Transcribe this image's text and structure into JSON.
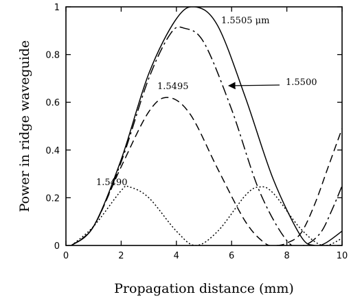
{
  "chart_data": {
    "type": "line",
    "title": "",
    "xlabel": "Propagation distance (mm)",
    "ylabel": "Power in ridge waveguide",
    "xlim": [
      0,
      10
    ],
    "ylim": [
      0,
      1
    ],
    "xticks": [
      "0",
      "2",
      "4",
      "6",
      "8",
      "10"
    ],
    "yticks": [
      "0",
      "0.2",
      "0.4",
      "0.6",
      "0.8",
      "1"
    ],
    "grid": false,
    "legend": "none",
    "series": [
      {
        "name": "1.5505 μm",
        "style": "solid",
        "x": [
          0.2,
          1.0,
          2.0,
          3.0,
          4.0,
          4.7,
          5.5,
          6.5,
          7.5,
          8.5,
          9.0,
          9.4,
          10.0
        ],
        "y": [
          0.0,
          0.08,
          0.36,
          0.72,
          0.95,
          1.0,
          0.92,
          0.62,
          0.28,
          0.04,
          0.0,
          0.01,
          0.06
        ]
      },
      {
        "name": "1.5500",
        "style": "dash-dot",
        "x": [
          0.2,
          1.0,
          2.0,
          3.0,
          3.8,
          4.3,
          5.0,
          6.0,
          7.0,
          8.0,
          8.6,
          9.2,
          9.6,
          10.0
        ],
        "y": [
          0.0,
          0.08,
          0.35,
          0.7,
          0.89,
          0.91,
          0.85,
          0.57,
          0.23,
          0.02,
          0.0,
          0.05,
          0.14,
          0.25
        ]
      },
      {
        "name": "1.5495",
        "style": "dashed",
        "x": [
          0.2,
          1.0,
          2.0,
          3.0,
          3.7,
          4.5,
          5.5,
          6.5,
          7.2,
          7.6,
          8.0,
          8.5,
          9.0,
          9.5,
          10.0
        ],
        "y": [
          0.0,
          0.08,
          0.33,
          0.56,
          0.62,
          0.55,
          0.32,
          0.1,
          0.01,
          0.0,
          0.01,
          0.05,
          0.17,
          0.33,
          0.49
        ]
      },
      {
        "name": "1.5490",
        "style": "dotted",
        "x": [
          0.2,
          1.0,
          2.0,
          2.3,
          3.0,
          4.0,
          4.7,
          5.5,
          6.5,
          7.0,
          7.5,
          8.5,
          9.3,
          10.0
        ],
        "y": [
          0.0,
          0.08,
          0.23,
          0.245,
          0.2,
          0.06,
          0.0,
          0.06,
          0.21,
          0.245,
          0.22,
          0.07,
          0.0,
          0.03
        ]
      }
    ],
    "annotations": [
      {
        "text": "1.5505 μm",
        "series": 0
      },
      {
        "text": "1.5500",
        "series": 1,
        "arrow": true
      },
      {
        "text": "1.5495",
        "series": 2
      },
      {
        "text": "1.5490",
        "series": 3
      }
    ]
  }
}
